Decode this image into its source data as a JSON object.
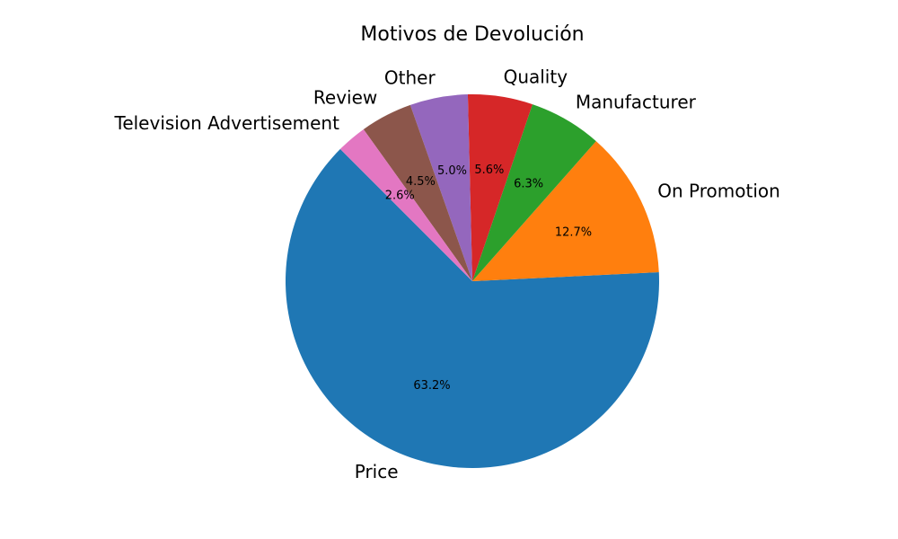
{
  "chart_data": {
    "type": "pie",
    "title": "Motivos de Devolución",
    "start_angle_deg": 135,
    "direction": "counterclockwise",
    "slices": [
      {
        "label": "Price",
        "value": 63.2,
        "pct_text": "63.2%",
        "color": "#1f77b4"
      },
      {
        "label": "On Promotion",
        "value": 12.7,
        "pct_text": "12.7%",
        "color": "#ff7f0e"
      },
      {
        "label": "Manufacturer",
        "value": 6.3,
        "pct_text": "6.3%",
        "color": "#2ca02c"
      },
      {
        "label": "Quality",
        "value": 5.6,
        "pct_text": "5.6%",
        "color": "#d62728"
      },
      {
        "label": "Other",
        "value": 5.0,
        "pct_text": "5.0%",
        "color": "#9467bd"
      },
      {
        "label": "Review",
        "value": 4.5,
        "pct_text": "4.5%",
        "color": "#8c564b"
      },
      {
        "label": "Television  Advertisement",
        "value": 2.6,
        "pct_text": "2.6%",
        "color": "#e377c2"
      }
    ]
  }
}
